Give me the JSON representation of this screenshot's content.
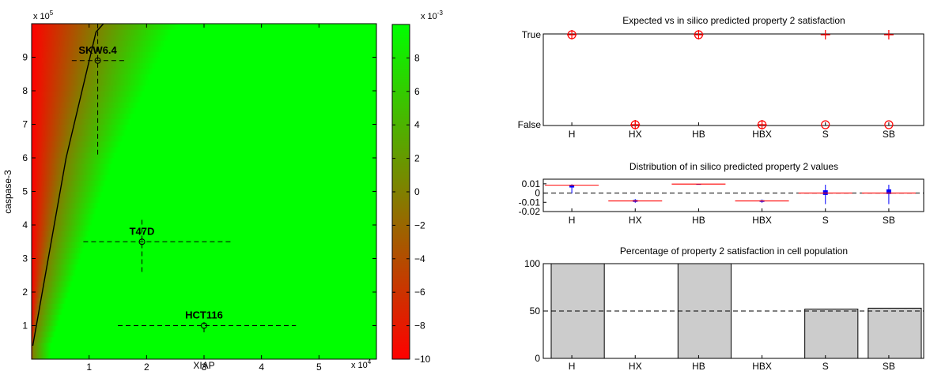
{
  "chart_data": [
    {
      "type": "heatmap",
      "title": "",
      "xlabel": "XIAP",
      "ylabel": "caspase-3",
      "x_multiplier": "x 10",
      "x_exp": "4",
      "y_multiplier": "x 10",
      "y_exp": "5",
      "xlim": [
        0.0,
        6.0
      ],
      "ylim": [
        0.0,
        10.0
      ],
      "xticks": [
        1,
        2,
        3,
        4,
        5
      ],
      "yticks": [
        1,
        2,
        3,
        4,
        5,
        6,
        7,
        8,
        9
      ],
      "boundary_line": [
        [
          0.02,
          0.4
        ],
        [
          0.6,
          6.0
        ],
        [
          1.12,
          9.75
        ],
        [
          1.25,
          10.0
        ]
      ],
      "cell_lines": [
        {
          "label": "SKW6.4",
          "x": 1.15,
          "y": 8.9,
          "x_err": [
            0.7,
            1.65
          ],
          "y_err": [
            6.1,
            10.0
          ]
        },
        {
          "label": "T47D",
          "x": 1.92,
          "y": 3.5,
          "x_err": [
            0.9,
            3.5
          ],
          "y_err": [
            2.6,
            4.2
          ]
        },
        {
          "label": "HCT116",
          "x": 3.0,
          "y": 1.0,
          "x_err": [
            1.5,
            4.6
          ],
          "y_err": [
            0.8,
            1.1
          ]
        }
      ],
      "colorbar": {
        "multiplier": "x 10",
        "exp": "-3",
        "range": [
          -10,
          10
        ],
        "ticks": [
          -10,
          -8,
          -6,
          -4,
          -2,
          0,
          2,
          4,
          6,
          8
        ],
        "low_color": "#ff0000",
        "mid_color": "#808000",
        "high_color": "#00ff00"
      }
    },
    {
      "type": "scatter",
      "title": "Expected vs in silico predicted property 2 satisfaction",
      "categories": [
        "H",
        "HX",
        "HB",
        "HBX",
        "S",
        "SB"
      ],
      "ytick_labels": [
        "True",
        "False"
      ],
      "series": [
        {
          "marker": "circle",
          "values": [
            "True",
            "False",
            "True",
            "False",
            "False",
            "False"
          ]
        },
        {
          "marker": "plus",
          "values": [
            "True",
            "False",
            "True",
            "False",
            "True",
            "True"
          ]
        }
      ],
      "marker_color": "#ff0000"
    },
    {
      "type": "box",
      "title": "Distribution of in silico predicted property 2 values",
      "categories": [
        "H",
        "HX",
        "HB",
        "HBX",
        "S",
        "SB"
      ],
      "ylim": [
        -0.02,
        0.015
      ],
      "yticks": [
        -0.02,
        -0.01,
        0,
        0.01
      ],
      "ytick_labels": [
        "-0.02",
        "-0.01",
        "0",
        "0.01"
      ],
      "boxes": [
        {
          "median": 0.0085,
          "q1": 0.006,
          "q3": 0.009,
          "whisker_low": -0.0005,
          "whisker_high": 0.0095
        },
        {
          "median": -0.0085,
          "q1": -0.0095,
          "q3": -0.0075,
          "whisker_low": -0.0105,
          "whisker_high": -0.0065
        },
        {
          "median": 0.0097,
          "q1": 0.0096,
          "q3": 0.0098,
          "whisker_low": 0.0095,
          "whisker_high": 0.0099
        },
        {
          "median": -0.0085,
          "q1": -0.0095,
          "q3": -0.0078,
          "whisker_low": -0.0105,
          "whisker_high": -0.007
        },
        {
          "median": 0.0,
          "q1": -0.002,
          "q3": 0.003,
          "whisker_low": -0.012,
          "whisker_high": 0.009
        },
        {
          "median": 0.0,
          "q1": -0.001,
          "q3": 0.004,
          "whisker_low": -0.012,
          "whisker_high": 0.009
        }
      ],
      "reference_line": 0,
      "box_color": "#0000ff",
      "median_color": "#ff0000"
    },
    {
      "type": "bar",
      "title": "Percentage of property 2 satisfaction in cell population",
      "categories": [
        "H",
        "HX",
        "HB",
        "HBX",
        "S",
        "SB"
      ],
      "values": [
        100,
        0,
        100,
        0,
        52,
        53
      ],
      "ylim": [
        0,
        100
      ],
      "yticks": [
        0,
        50,
        100
      ],
      "reference_line": 50,
      "bar_color": "#cccccc"
    }
  ]
}
